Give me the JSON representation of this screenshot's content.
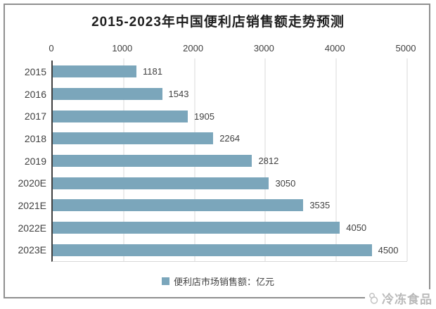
{
  "title": "2015-2023年中国便利店销售额走势预测",
  "chart_data": {
    "type": "bar",
    "orientation": "horizontal",
    "title": "2015-2023年中国便利店销售额走势预测",
    "categories": [
      "2015",
      "2016",
      "2017",
      "2018",
      "2019",
      "2020E",
      "2021E",
      "2022E",
      "2023E"
    ],
    "values": [
      1181,
      1543,
      1905,
      2264,
      2812,
      3050,
      3535,
      4050,
      4500
    ],
    "xlim": [
      0,
      5000
    ],
    "xticks": [
      0,
      1000,
      2000,
      3000,
      4000,
      5000
    ],
    "axis_position": "top",
    "grid": true,
    "value_labels": true,
    "bar_color": "#7BA6BB",
    "legend": {
      "label": "便利店市场销售额：亿元",
      "position": "bottom"
    }
  },
  "watermark": {
    "text": "冷冻食品"
  }
}
